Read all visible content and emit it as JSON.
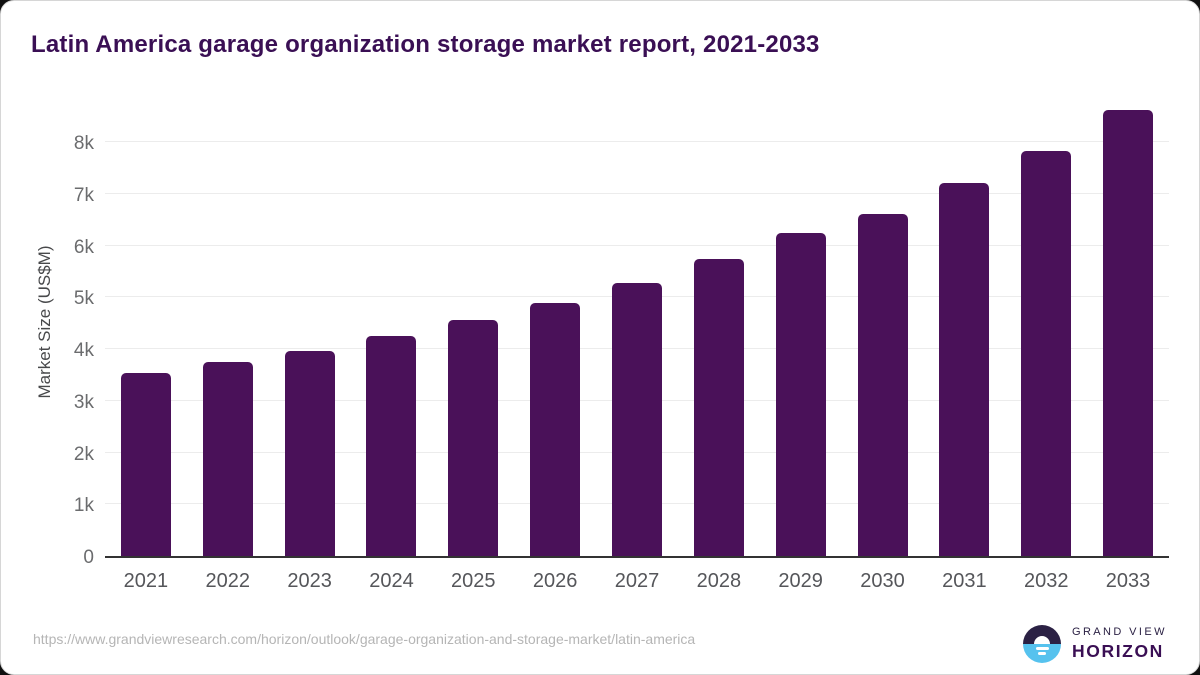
{
  "header": {
    "title": "Latin America garage organization storage market report, 2021-2033"
  },
  "chart_data": {
    "type": "bar",
    "title": "Latin America garage organization storage market report, 2021-2033",
    "categories": [
      "2021",
      "2022",
      "2023",
      "2024",
      "2025",
      "2026",
      "2027",
      "2028",
      "2029",
      "2030",
      "2031",
      "2032",
      "2033"
    ],
    "values": [
      3530,
      3750,
      3970,
      4250,
      4570,
      4900,
      5280,
      5740,
      6240,
      6620,
      7210,
      7840,
      8620
    ],
    "xlabel": "",
    "ylabel": "Market Size (US$M)",
    "ylim": [
      0,
      8740
    ],
    "yticks": [
      0,
      1000,
      2000,
      3000,
      4000,
      5000,
      6000,
      7000,
      8000
    ],
    "ytick_labels": [
      "0",
      "1k",
      "2k",
      "3k",
      "4k",
      "5k",
      "6k",
      "7k",
      "8k"
    ],
    "grid": "horizontal",
    "legend": "none",
    "bar_color": "#4A1159"
  },
  "footer": {
    "source_url": "https://www.grandviewresearch.com/horizon/outlook/garage-organization-and-storage-market/latin-america",
    "logo": {
      "line1": "GRAND VIEW",
      "line2": "HORIZON"
    }
  },
  "colors": {
    "bar": "#4A1159",
    "title_text": "#3A0F54",
    "axis_line": "#333333",
    "gridline": "#ECECEC",
    "tick_text": "#55565A",
    "muted_text": "#B5B5B5",
    "logo_navy": "#2B2144",
    "logo_blue": "#56C2EE"
  }
}
